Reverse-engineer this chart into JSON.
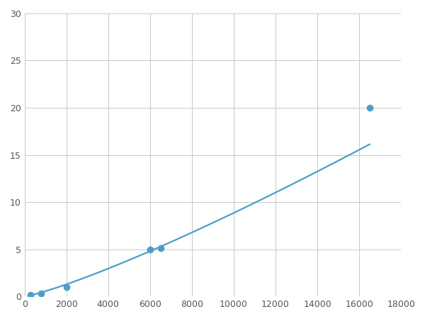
{
  "x": [
    300,
    800,
    2000,
    6250,
    16500
  ],
  "y": [
    0.2,
    0.3,
    1.0,
    5.0,
    20.0
  ],
  "line_color": "#4a9fc8",
  "marker_color": "#4a9fc8",
  "marker_size": 7,
  "xlim": [
    0,
    18000
  ],
  "ylim": [
    0,
    30
  ],
  "xticks": [
    0,
    2000,
    4000,
    6000,
    8000,
    10000,
    12000,
    14000,
    16000,
    18000
  ],
  "yticks": [
    0,
    5,
    10,
    15,
    20,
    25,
    30
  ],
  "grid_color": "#c8c8c8",
  "background_color": "#ffffff",
  "line_width": 1.6
}
